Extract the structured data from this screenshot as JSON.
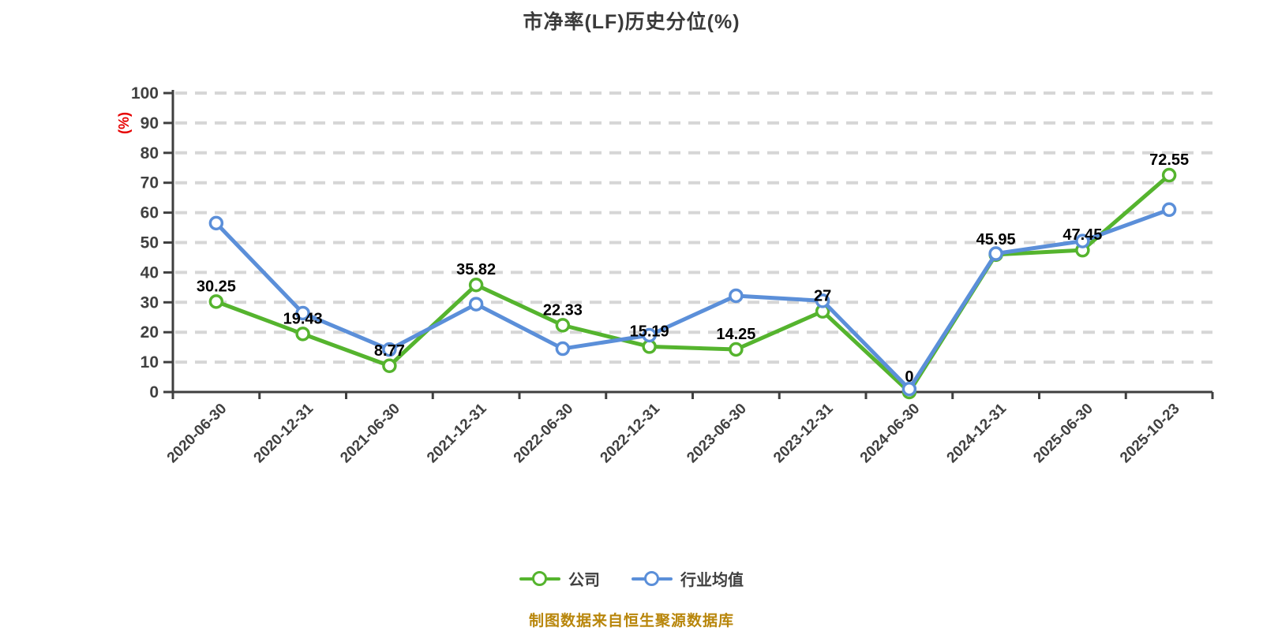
{
  "title": "市净率(LF)历史分位(%)",
  "footer": "制图数据来自恒生聚源数据库",
  "colors": {
    "company_green": "#55b42e",
    "industry_blue": "#5b8fd9",
    "axis_unit_red": "#e60000",
    "footer_gold": "#b8860b",
    "axis_gray": "#3f3f3f",
    "grid_gray": "#d6d6d6",
    "data_label_black": "#000000"
  },
  "chart_data": {
    "type": "line",
    "title": "市净率(LF)历史分位(%)",
    "ylabel": "(%)",
    "xlabel": "",
    "ylim": [
      0,
      100
    ],
    "y_ticks": [
      0,
      10,
      20,
      30,
      40,
      50,
      60,
      70,
      80,
      90,
      100
    ],
    "grid": "horizontal dashed",
    "legend_position": "bottom",
    "categories": [
      "2020-06-30",
      "2020-12-31",
      "2021-06-30",
      "2021-12-31",
      "2022-06-30",
      "2022-12-31",
      "2023-06-30",
      "2023-12-31",
      "2024-06-30",
      "2024-12-31",
      "2025-06-30",
      "2025-10-23"
    ],
    "series": [
      {
        "name": "公司",
        "color": "#55b42e",
        "marker": "hollow-circle",
        "values": [
          30.25,
          19.43,
          8.77,
          35.82,
          22.33,
          15.19,
          14.25,
          27,
          0,
          45.95,
          47.45,
          72.55
        ],
        "data_labels": [
          "30.25",
          "19.43",
          "8.77",
          "35.82",
          "22.33",
          "15.19",
          "14.25",
          "27",
          "0",
          "45.95",
          "47.45",
          "72.55"
        ]
      },
      {
        "name": "行业均值",
        "color": "#5b8fd9",
        "marker": "hollow-circle",
        "values": [
          56.5,
          26.4,
          14.2,
          29.4,
          14.5,
          19,
          32.2,
          30.5,
          1,
          46.3,
          50.5,
          61
        ],
        "data_labels": []
      }
    ]
  }
}
